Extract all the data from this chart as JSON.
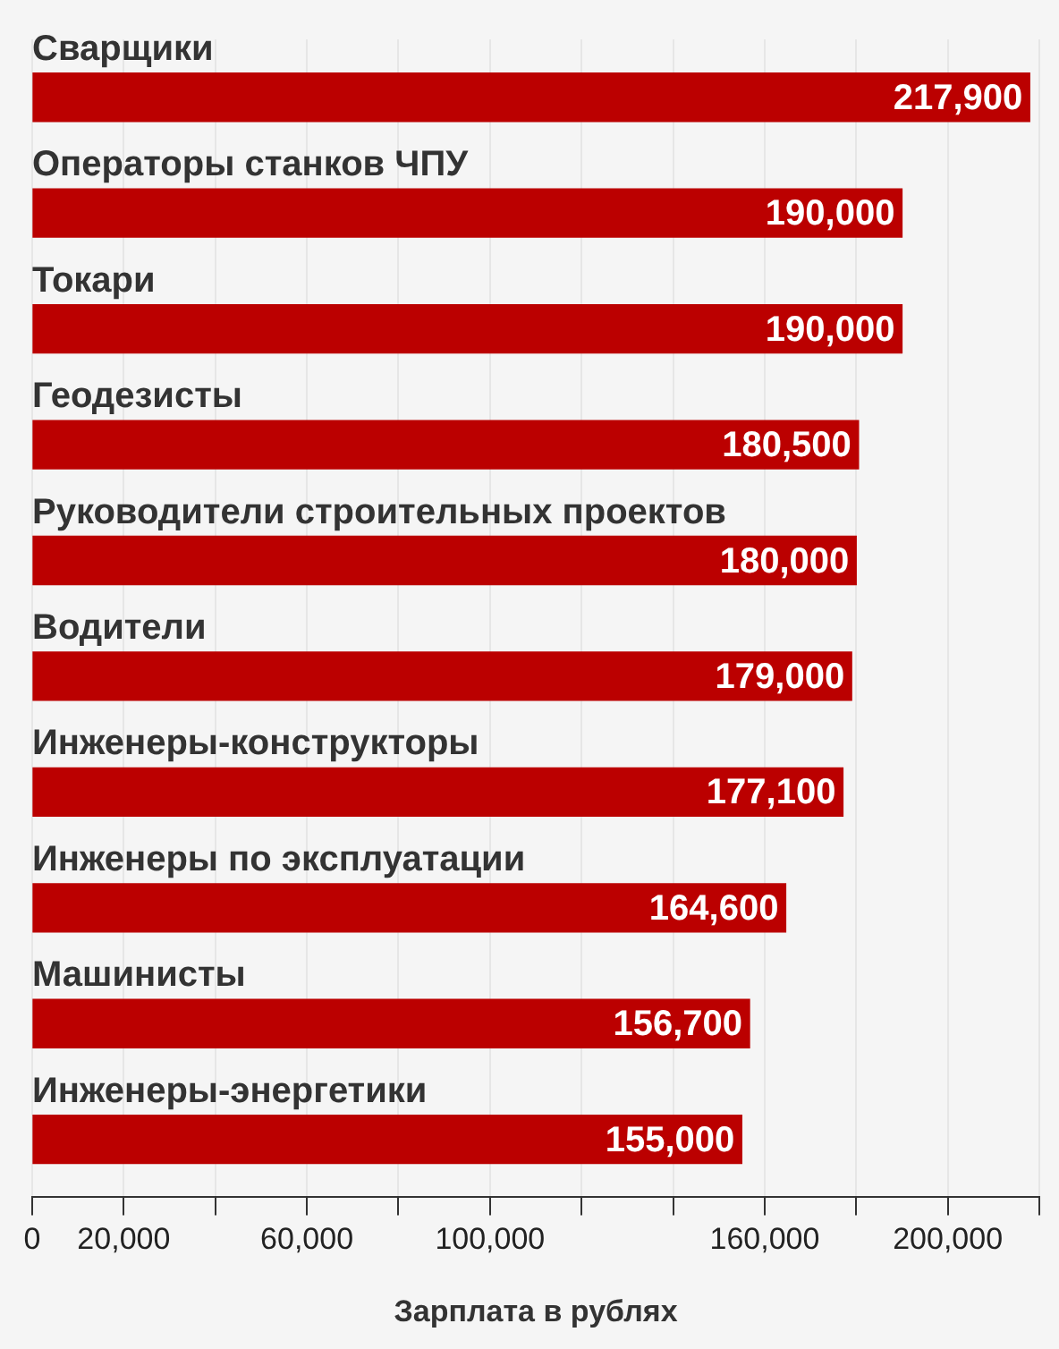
{
  "chart_data": {
    "type": "bar",
    "orientation": "horizontal",
    "xlabel": "Зарплата в рублях",
    "categories": [
      "Сварщики",
      "Операторы станков ЧПУ",
      "Токари",
      "Геодезисты",
      "Руководители строительных проектов",
      "Водители",
      "Инженеры-конструкторы",
      "Инженеры по эксплуатации",
      "Машинисты",
      "Инженеры-энергетики"
    ],
    "values": [
      217900,
      190000,
      190000,
      180500,
      180000,
      179000,
      177100,
      164600,
      156700,
      155000
    ],
    "value_labels": [
      "217,900",
      "190,000",
      "190,000",
      "180,500",
      "180,000",
      "179,000",
      "177,100",
      "164,600",
      "156,700",
      "155,000"
    ],
    "color": "#bb0000",
    "grid": "x",
    "legend": false,
    "xlim": [
      0,
      220000
    ],
    "xticks": [
      0,
      {
        "value": 20000,
        "label": "20,000"
      },
      {
        "value": 40000,
        "label": null
      },
      {
        "value": 60000,
        "label": "60,000"
      },
      {
        "value": 80000,
        "label": null
      },
      {
        "value": 100000,
        "label": "100,000"
      },
      {
        "value": 120000,
        "label": null
      },
      {
        "value": 140000,
        "label": null
      },
      {
        "value": 160000,
        "label": "160,000"
      },
      {
        "value": 180000,
        "label": null
      },
      {
        "value": 200000,
        "label": "200,000"
      },
      {
        "value": 220000,
        "label": null
      }
    ]
  }
}
